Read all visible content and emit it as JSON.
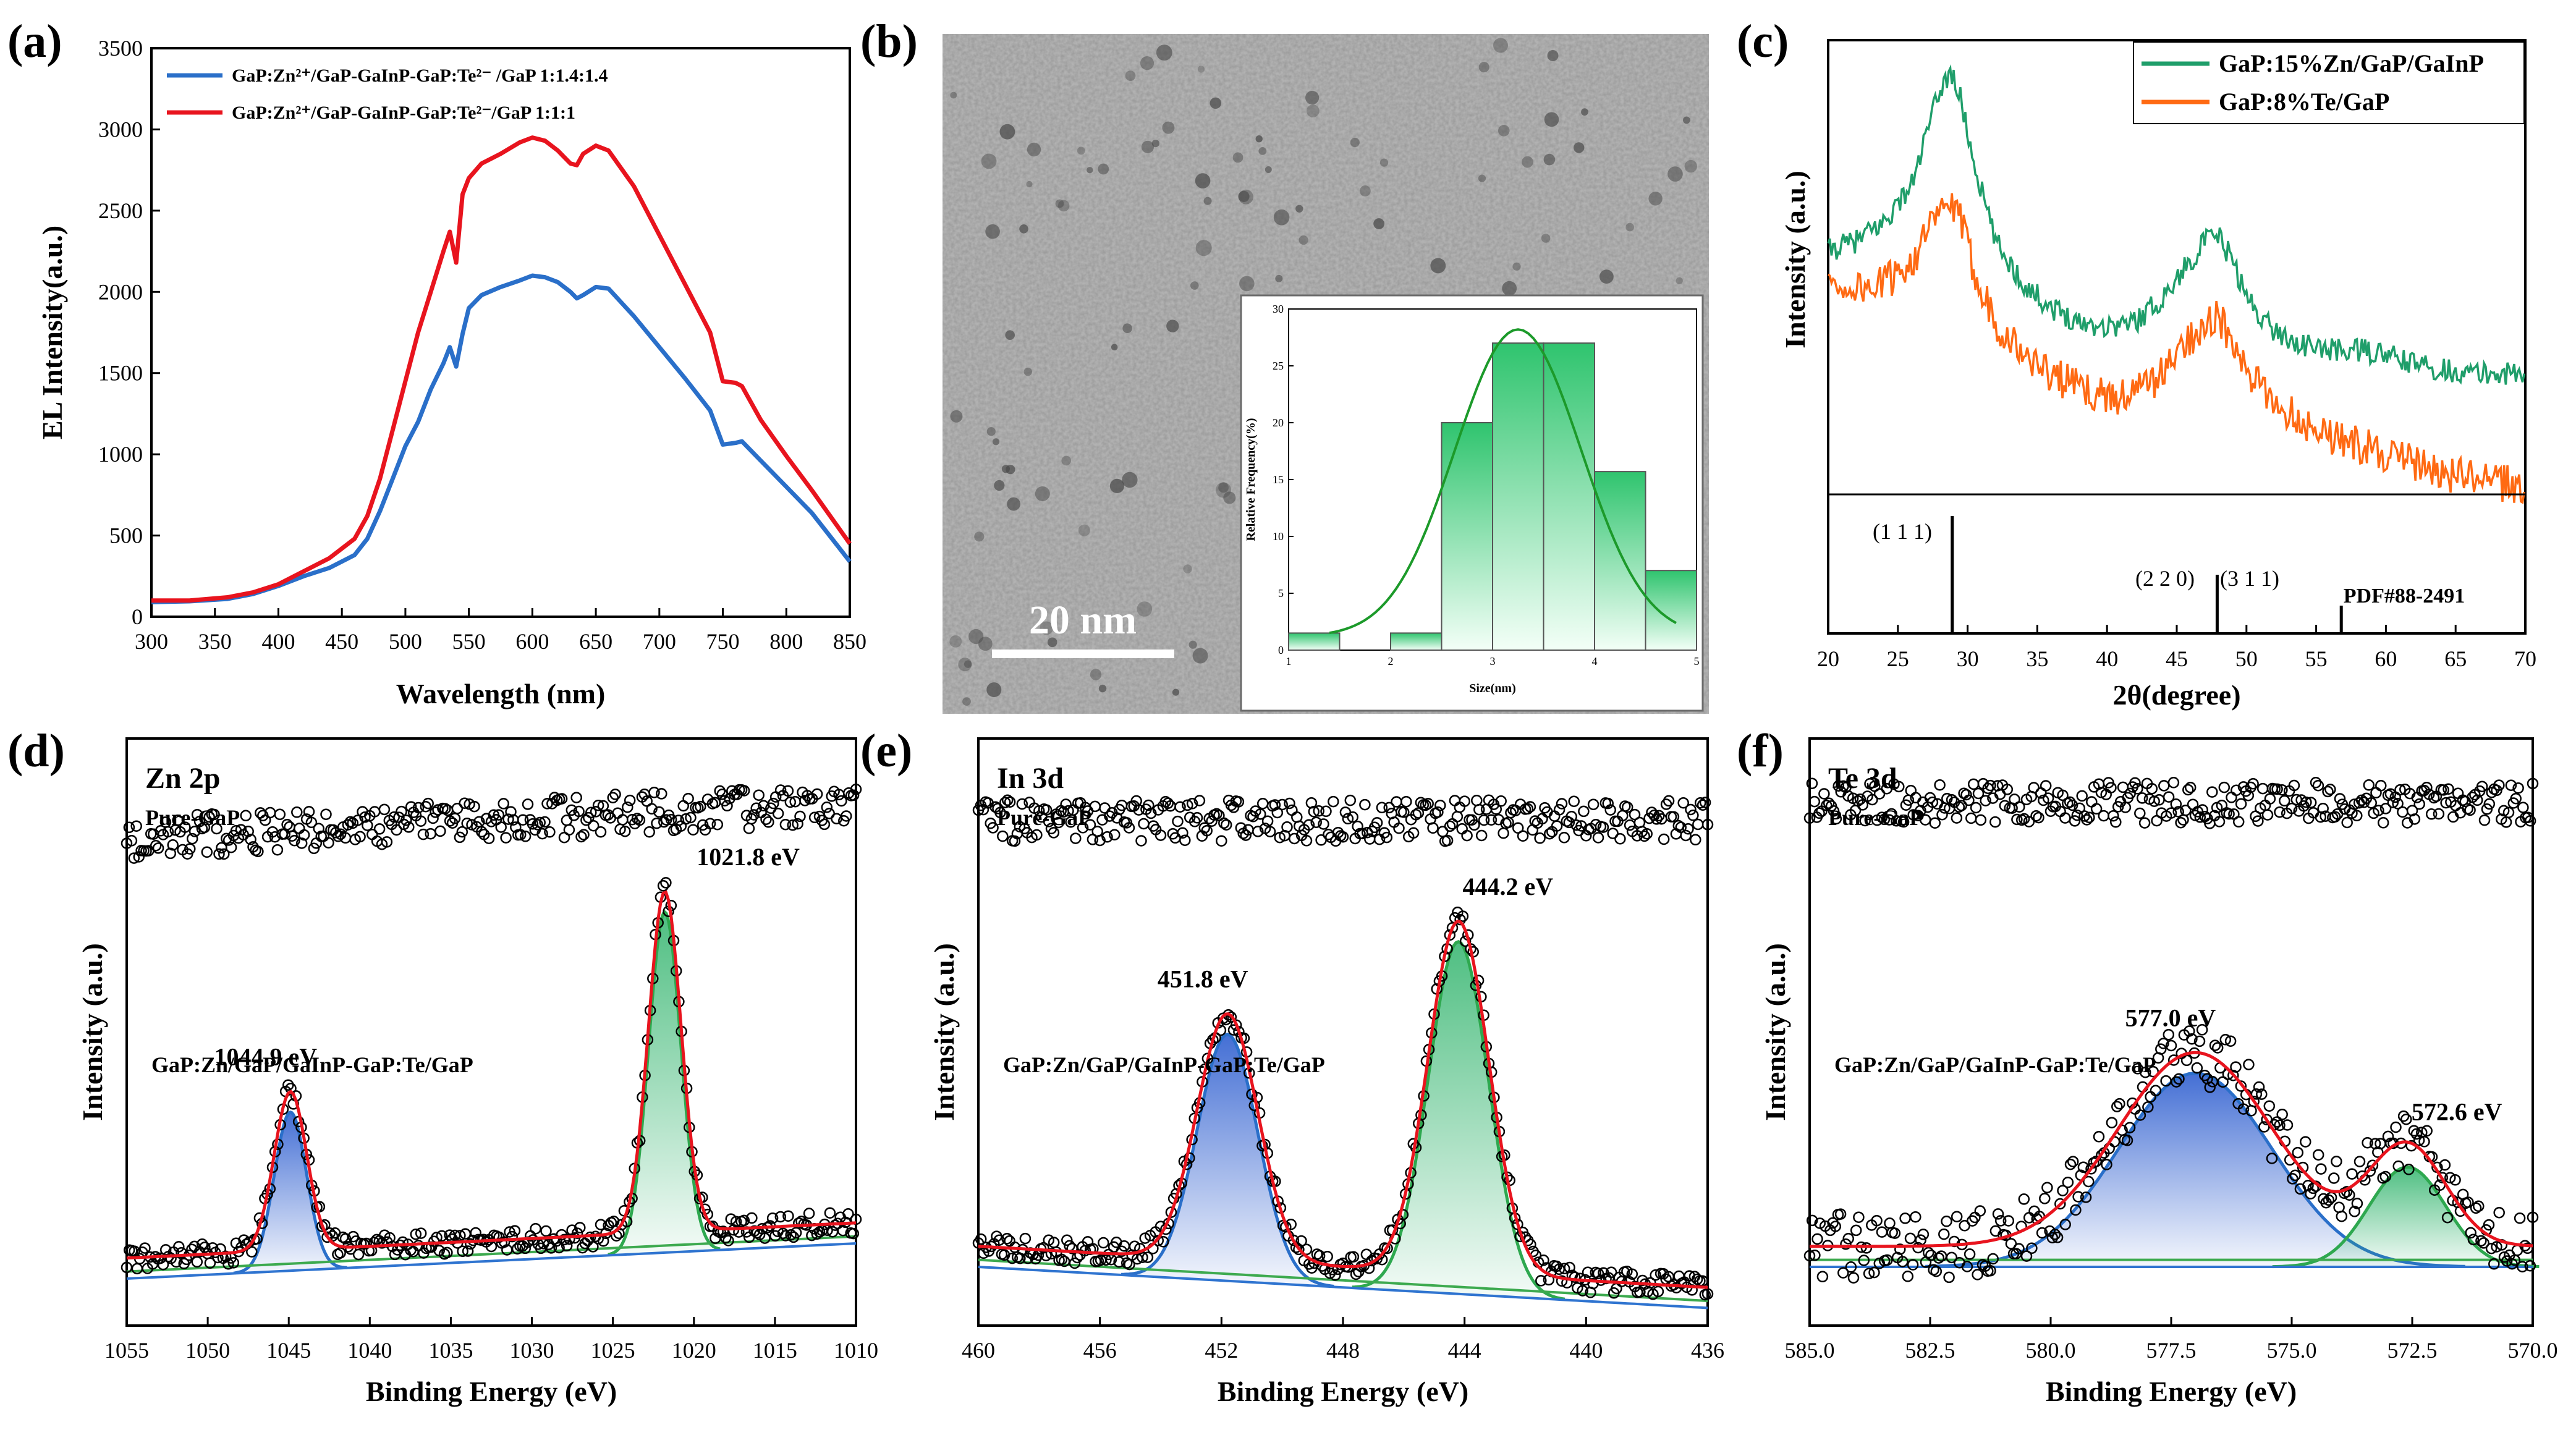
{
  "panel_labels": [
    "(a)",
    "(b)",
    "(c)",
    "(d)",
    "(e)",
    "(f)"
  ],
  "colors": {
    "blue": "#2a6fc9",
    "red": "#e8141e",
    "green": "#1f9e6a",
    "orange": "#ff6a13",
    "fit_green": "#3daa4f",
    "bg_blue": "#2f74d0"
  },
  "chart_data": [
    {
      "id": "a",
      "type": "line",
      "xlabel": "Wavelength  (nm)",
      "ylabel": "EL Intensity(a.u.)",
      "xlim": [
        300,
        850
      ],
      "ylim": [
        0,
        3500
      ],
      "xticks": [
        300,
        350,
        400,
        450,
        500,
        550,
        600,
        650,
        700,
        750,
        800,
        850
      ],
      "yticks": [
        0,
        500,
        1000,
        1500,
        2000,
        2500,
        3000,
        3500
      ],
      "legend": [
        "GaP:Zn²⁺/GaP-GaInP-GaP:Te²⁻ /GaP  1:1.4:1.4",
        "GaP:Zn²⁺/GaP-GaInP-GaP:Te²⁻/GaP    1:1:1"
      ],
      "series": [
        {
          "name": "GaP:Zn²⁺/GaP-GaInP-GaP:Te²⁻ /GaP  1:1.4:1.4",
          "x": [
            300,
            330,
            360,
            380,
            400,
            420,
            440,
            460,
            470,
            480,
            490,
            500,
            510,
            520,
            530,
            535,
            540,
            545,
            550,
            560,
            575,
            590,
            600,
            610,
            620,
            630,
            635,
            640,
            650,
            660,
            680,
            700,
            720,
            740,
            750,
            760,
            765,
            780,
            800,
            820,
            840,
            850
          ],
          "y": [
            90,
            95,
            110,
            140,
            190,
            250,
            300,
            380,
            480,
            650,
            850,
            1050,
            1200,
            1400,
            1560,
            1660,
            1540,
            1740,
            1900,
            1980,
            2030,
            2070,
            2100,
            2090,
            2060,
            2000,
            1960,
            1980,
            2030,
            2020,
            1850,
            1660,
            1470,
            1270,
            1060,
            1070,
            1080,
            960,
            800,
            640,
            440,
            340
          ]
        },
        {
          "name": "GaP:Zn²⁺/GaP-GaInP-GaP:Te²⁻/GaP    1:1:1",
          "x": [
            300,
            330,
            360,
            380,
            400,
            420,
            440,
            460,
            470,
            480,
            490,
            500,
            510,
            520,
            530,
            535,
            540,
            545,
            550,
            560,
            575,
            590,
            600,
            610,
            620,
            630,
            635,
            640,
            650,
            660,
            680,
            700,
            720,
            740,
            750,
            760,
            765,
            780,
            800,
            820,
            840,
            850
          ],
          "y": [
            100,
            100,
            120,
            150,
            200,
            280,
            360,
            480,
            620,
            850,
            1150,
            1450,
            1750,
            2000,
            2250,
            2370,
            2180,
            2600,
            2700,
            2790,
            2850,
            2920,
            2950,
            2930,
            2870,
            2790,
            2780,
            2850,
            2900,
            2870,
            2650,
            2350,
            2050,
            1750,
            1450,
            1440,
            1420,
            1210,
            990,
            780,
            560,
            450
          ]
        }
      ]
    },
    {
      "id": "b-inset",
      "type": "bar",
      "xlabel": "Size(nm)",
      "ylabel": "Relative Frequency(%)",
      "xlim": [
        1,
        5
      ],
      "ylim": [
        0,
        30
      ],
      "xticks": [
        1,
        2,
        3,
        4,
        5
      ],
      "yticks": [
        0,
        5,
        10,
        15,
        20,
        25,
        30
      ],
      "bins": [
        [
          1,
          1.5
        ],
        [
          1.5,
          2
        ],
        [
          2,
          2.5
        ],
        [
          2.5,
          3
        ],
        [
          3,
          3.5
        ],
        [
          3.5,
          4
        ],
        [
          4,
          4.5
        ],
        [
          4.5,
          5
        ]
      ],
      "values": [
        1.5,
        0,
        1.5,
        20,
        27,
        27,
        15.7,
        7
      ],
      "fit": {
        "type": "gaussian",
        "center": 3.25,
        "sigma": 0.62,
        "peak": 27
      }
    },
    {
      "id": "c",
      "type": "line",
      "xlabel": "2θ(degree)",
      "ylabel": "Intensity (a.u.)",
      "xlim": [
        20,
        70
      ],
      "xticks": [
        20,
        25,
        30,
        35,
        40,
        45,
        50,
        55,
        60,
        65,
        70
      ],
      "legend": [
        "GaP:15%Zn/GaP/GaInP",
        "GaP:8%Te/GaP"
      ],
      "series": [
        {
          "name": "GaP:15%Zn/GaP/GaInP",
          "x": [
            20,
            22,
            24,
            26,
            27,
            28,
            28.8,
            29.5,
            30.5,
            32,
            34,
            36,
            38,
            40,
            42,
            44,
            45.5,
            47,
            48,
            49,
            50,
            52,
            54,
            56,
            58,
            60,
            62,
            64,
            66,
            68,
            70
          ],
          "y": [
            0.62,
            0.64,
            0.68,
            0.76,
            0.86,
            0.96,
            1.0,
            0.94,
            0.8,
            0.64,
            0.55,
            0.5,
            0.47,
            0.46,
            0.47,
            0.52,
            0.58,
            0.64,
            0.65,
            0.6,
            0.52,
            0.45,
            0.42,
            0.41,
            0.41,
            0.4,
            0.38,
            0.37,
            0.36,
            0.36,
            0.36
          ]
        },
        {
          "name": "GaP:8%Te/GaP",
          "x": [
            20,
            22,
            24,
            26,
            27,
            28,
            28.8,
            29.5,
            30.5,
            32,
            34,
            36,
            38,
            40,
            42,
            44,
            45.5,
            47,
            48,
            49,
            50,
            52,
            54,
            56,
            58,
            60,
            62,
            64,
            66,
            68,
            70
          ],
          "y": [
            0.55,
            0.54,
            0.55,
            0.6,
            0.65,
            0.7,
            0.72,
            0.68,
            0.58,
            0.47,
            0.4,
            0.36,
            0.33,
            0.31,
            0.32,
            0.36,
            0.42,
            0.47,
            0.48,
            0.42,
            0.36,
            0.3,
            0.26,
            0.23,
            0.21,
            0.19,
            0.17,
            0.15,
            0.14,
            0.13,
            0.12
          ]
        }
      ],
      "reference": {
        "label": "PDF#88-2491",
        "peaks": [
          {
            "x": 28.9,
            "label": "(1 1 1)"
          },
          {
            "x": 47.9,
            "label": "(2 2 0)"
          },
          {
            "x": 56.8,
            "label": "(3 1 1)"
          }
        ]
      }
    },
    {
      "id": "d",
      "type": "scatter",
      "title": "Zn 2p",
      "xlabel": "Binding Energy (eV)",
      "ylabel": "Intensity (a.u.)",
      "xlim": [
        1055,
        1010
      ],
      "xticks": [
        1055,
        1050,
        1045,
        1040,
        1035,
        1030,
        1025,
        1020,
        1015,
        1010
      ],
      "top_label": "Pure-GaP",
      "sample_label": "GaP:Zn/GaP/GaInP-GaP:Te/GaP",
      "peaks": [
        {
          "center": 1044.9,
          "label": "1044.9 eV",
          "height": 0.27,
          "width": 1.0
        },
        {
          "center": 1021.8,
          "label": "1021.8 eV",
          "height": 0.58,
          "width": 1.0
        }
      ],
      "pure_level": 0.86,
      "pure_slope": 0.06,
      "baseline": [
        0.08,
        0.14
      ]
    },
    {
      "id": "e",
      "type": "scatter",
      "title": "In 3d",
      "xlabel": "Binding Energy (eV)",
      "ylabel": "Intensity (a.u.)",
      "xlim": [
        460,
        436
      ],
      "xticks": [
        460,
        456,
        452,
        448,
        444,
        440,
        436
      ],
      "top_label": "Pure-GaP",
      "sample_label": "GaP:Zn/GaP/GaInP-GaP:Te/GaP",
      "peaks": [
        {
          "center": 451.8,
          "label": "451.8 eV",
          "height": 0.42,
          "width": 1.0
        },
        {
          "center": 444.2,
          "label": "444.2 eV",
          "height": 0.6,
          "width": 1.0
        }
      ],
      "pure_level": 0.86,
      "pure_slope": 0.0,
      "baseline": [
        0.1,
        0.03
      ]
    },
    {
      "id": "f",
      "type": "scatter",
      "title": "Te 3d",
      "xlabel": "Binding Energy (eV)",
      "ylabel": "Intensity (a.u.)",
      "xlim": [
        585.0,
        570.0
      ],
      "xticks": [
        585.0,
        582.5,
        580.0,
        577.5,
        575.0,
        572.5,
        570.0
      ],
      "top_label": "Pure-GaP",
      "sample_label": "GaP:Zn/GaP/GaInP-GaP:Te/GaP",
      "peaks": [
        {
          "center": 577.0,
          "label": "577.0 eV",
          "height": 0.33,
          "width": 1.6
        },
        {
          "center": 572.6,
          "label": "572.6 eV",
          "height": 0.17,
          "width": 0.8
        }
      ],
      "pure_level": 0.89,
      "pure_slope": 0.0,
      "baseline": [
        0.1,
        0.1
      ]
    }
  ],
  "tem": {
    "scale_bar": "20 nm"
  }
}
